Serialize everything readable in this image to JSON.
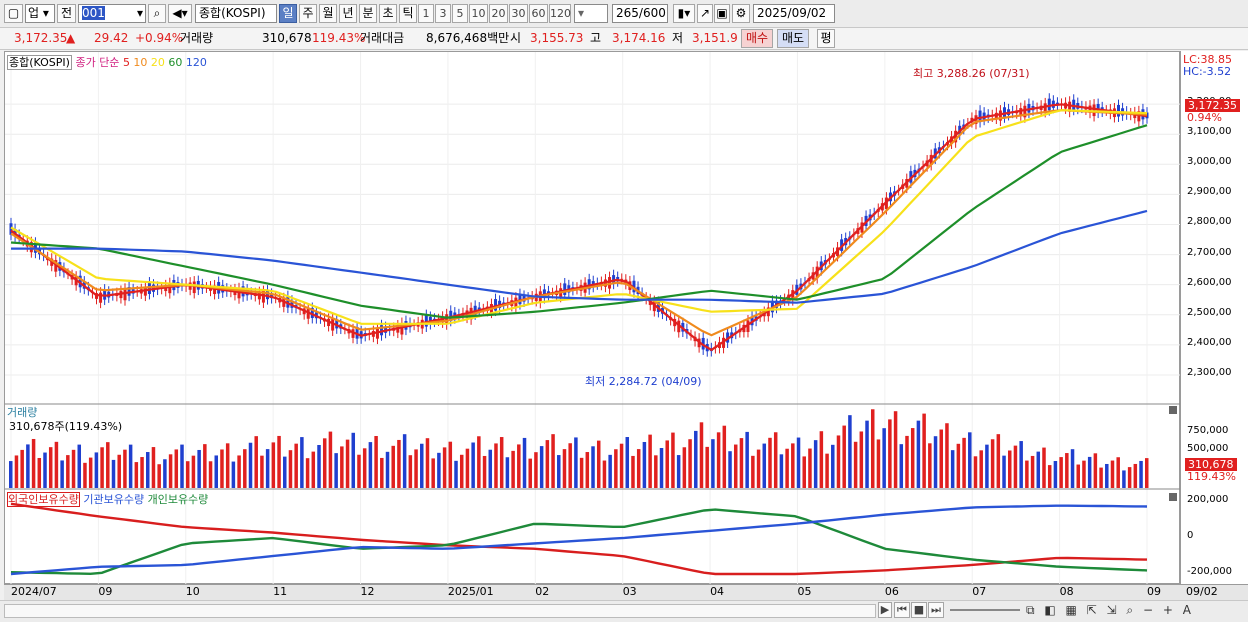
{
  "toolbar": {
    "market_type": "업",
    "prev_label": "전",
    "code": "001",
    "index_name": "종합(KOSPI)",
    "periods": [
      "일",
      "주",
      "월",
      "년",
      "분",
      "초",
      "틱"
    ],
    "selected_period": "일",
    "minutes": [
      "1",
      "3",
      "5",
      "10",
      "20",
      "30",
      "60",
      "120"
    ],
    "count": "265",
    "count_max": "/600",
    "date": "2025/09/02"
  },
  "quote": {
    "price": "3,172.35",
    "arrow": "▲",
    "change": "29.42",
    "change_pct": "+0.94%",
    "volume_label": "거래량",
    "volume": "310,678",
    "volume_pct": "119.43%",
    "amount_label": "거래대금",
    "amount": "8,676,468백만",
    "open_label": "시",
    "open": "3,155.73",
    "high_label": "고",
    "high": "3,174.16",
    "low_label": "저",
    "low": "3,151.9",
    "buy_label": "매수",
    "sell_label": "매도",
    "eval_label": "평"
  },
  "price_panel": {
    "title": "종합(KOSPI)",
    "ma_label": "종가 단순",
    "ma_periods": [
      "5",
      "10",
      "20",
      "60",
      "120"
    ],
    "ma_colors": [
      "#e0201f",
      "#f08a1c",
      "#f7e11a",
      "#1e8f2a",
      "#2a54d6"
    ],
    "lc": "LC:38.85",
    "hc": "HC:-3.52",
    "max_annotation": "최고 3,288.26 (07/31)",
    "min_annotation": "최저 2,284.72 (04/09)",
    "last_price_tag": "3,172.35",
    "last_pct_tag": "0.94%",
    "y_ticks": [
      "3,200,00",
      "3,100,00",
      "3,000,00",
      "2,900,00",
      "2,800,00",
      "2,700,00",
      "2,600,00",
      "2,500,00",
      "2,400,00",
      "2,300,00"
    ]
  },
  "volume_panel": {
    "title": "거래량",
    "last": "310,678주(119.43%)",
    "y_ticks": [
      "750,000",
      "500,000",
      "250,000"
    ],
    "last_tag": "310,678",
    "last_pct_tag": "119.43%"
  },
  "holding_panel": {
    "series_labels": [
      "외국인보유수량",
      "기관보유수량",
      "개인보유수량"
    ],
    "y_ticks": [
      "200,000",
      "0",
      "-200,000"
    ]
  },
  "x_axis": {
    "labels": [
      "2024/07",
      "09",
      "10",
      "11",
      "12",
      "2025/01",
      "02",
      "03",
      "04",
      "05",
      "06",
      "07",
      "08",
      "09"
    ],
    "right_label": "09/02"
  },
  "colors": {
    "up": "#e0201f",
    "down": "#1f3fcf",
    "foreign": "#d81e1e",
    "institution": "#1e8a3a",
    "individual": "#2a54d6"
  },
  "chart_data": {
    "type": "line",
    "title": "종합(KOSPI)",
    "x": [
      "2024/07",
      "2024/09",
      "2024/10",
      "2024/11",
      "2024/12",
      "2025/01",
      "2025/02",
      "2025/03",
      "2025/04",
      "2025/05",
      "2025/06",
      "2025/07",
      "2025/08",
      "2025/09/02"
    ],
    "series": [
      {
        "name": "5",
        "values": [
          2780,
          2560,
          2600,
          2560,
          2430,
          2490,
          2560,
          2620,
          2380,
          2580,
          2870,
          3150,
          3200,
          3160
        ]
      },
      {
        "name": "10",
        "values": [
          2770,
          2580,
          2600,
          2570,
          2450,
          2480,
          2560,
          2610,
          2430,
          2560,
          2840,
          3140,
          3180,
          3165
        ]
      },
      {
        "name": "20",
        "values": [
          2790,
          2620,
          2600,
          2580,
          2470,
          2470,
          2540,
          2570,
          2510,
          2520,
          2780,
          3090,
          3180,
          3170
        ]
      },
      {
        "name": "60",
        "values": [
          2740,
          2720,
          2660,
          2600,
          2530,
          2490,
          2510,
          2540,
          2580,
          2550,
          2620,
          2850,
          3040,
          3130
        ]
      },
      {
        "name": "120",
        "values": [
          2720,
          2720,
          2710,
          2680,
          2640,
          2600,
          2560,
          2550,
          2550,
          2540,
          2570,
          2660,
          2770,
          2845
        ]
      }
    ],
    "volume": [
      520000,
      480000,
      450000,
      560000,
      600000,
      520000,
      570000,
      520000,
      700000,
      540000,
      900000,
      620000,
      420000,
      310678
    ],
    "holding": [
      {
        "name": "외국인보유수량",
        "values": [
          190000,
          120000,
          60000,
          30000,
          -10000,
          -40000,
          -60000,
          -100000,
          -200000,
          -200000,
          -180000,
          -150000,
          -110000,
          -120000
        ]
      },
      {
        "name": "기관보유수량",
        "values": [
          -190000,
          -200000,
          -30000,
          0,
          -60000,
          -40000,
          80000,
          60000,
          160000,
          120000,
          -60000,
          -120000,
          -160000,
          -180000
        ]
      },
      {
        "name": "개인보유수량",
        "values": [
          -200000,
          -160000,
          -150000,
          -100000,
          -50000,
          -60000,
          -30000,
          0,
          40000,
          80000,
          130000,
          170000,
          180000,
          175000
        ]
      }
    ],
    "annotations": [
      "최고 3,288.26 (07/31)",
      "최저 2,284.72 (04/09)"
    ],
    "ylim": [
      2250,
      3300
    ]
  }
}
